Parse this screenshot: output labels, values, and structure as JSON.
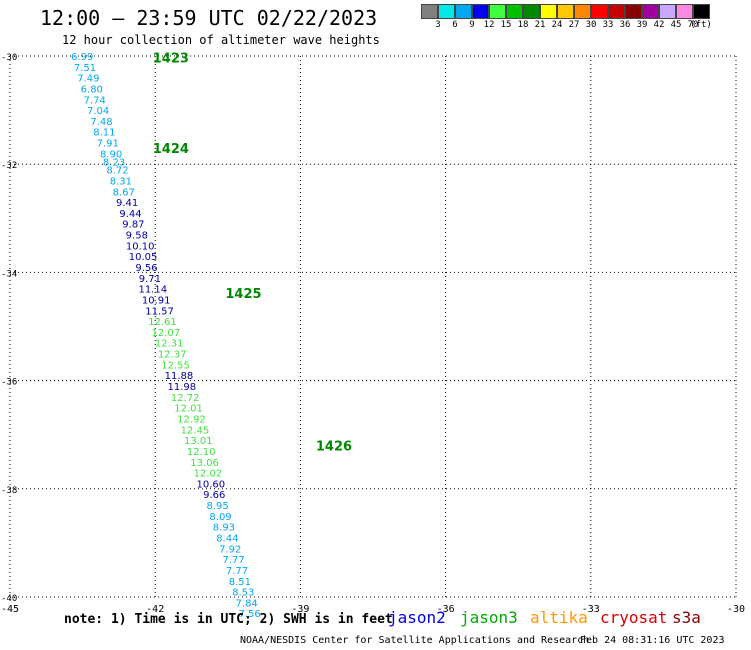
{
  "title": "12:00 – 23:59 UTC 02/22/2023",
  "subtitle": "12 hour collection of altimeter wave heights",
  "color_scale": {
    "labels": [
      "3",
      "6",
      "9",
      "12",
      "15",
      "18",
      "21",
      "24",
      "27",
      "30",
      "33",
      "36",
      "39",
      "42",
      "45",
      "70",
      "(ft)"
    ],
    "colors": [
      "#808080",
      "#00e8e8",
      "#00a8f0",
      "#0000f0",
      "#40ff40",
      "#00c000",
      "#008800",
      "#ffff00",
      "#ffc800",
      "#ff8800",
      "#ff0000",
      "#c80000",
      "#880000",
      "#a000a0",
      "#c8a8ff",
      "#ff88e0",
      "#000000"
    ]
  },
  "note": "note: 1) Time is in UTC; 2) SWH is in feet",
  "satellites": [
    {
      "name": "jason2",
      "color": "#0000f0"
    },
    {
      "name": "jason3",
      "color": "#00aa00"
    },
    {
      "name": "altika",
      "color": "#ff9900"
    },
    {
      "name": "cryosat",
      "color": "#dd0000"
    },
    {
      "name": "s3a",
      "color": "#880000"
    }
  ],
  "footer": "NOAA/NESDIS Center for Satellite Applications and Research",
  "timestamp": "Feb 24 08:31:16 UTC 2023",
  "chart_data": {
    "type": "scatter",
    "x_label_units": "longitude",
    "y_label_units": "latitude",
    "xlim": [
      -45,
      -30
    ],
    "ylim": [
      -40,
      -30
    ],
    "x_ticks": [
      "-45",
      "-42",
      "-39",
      "-36",
      "-33",
      "-30"
    ],
    "y_ticks": [
      "-30",
      "-32",
      "-34",
      "-36",
      "-38",
      "-40"
    ],
    "x_tick_values": [
      -45,
      -42,
      -39,
      -36,
      -33,
      -30
    ],
    "y_tick_values": [
      -30,
      -32,
      -34,
      -36,
      -38,
      -40
    ],
    "time_labels": [
      {
        "text": "1423",
        "lon": -42.05,
        "lat": -30.03
      },
      {
        "text": "1424",
        "lon": -42.05,
        "lat": -31.7
      },
      {
        "text": "1425",
        "lon": -40.55,
        "lat": -34.38
      },
      {
        "text": "1426",
        "lon": -38.68,
        "lat": -37.2
      }
    ],
    "points": [
      {
        "lon": -43.51,
        "lat": -30.0,
        "swh": "6.99",
        "color": "#00a8f0"
      },
      {
        "lon": -43.45,
        "lat": -30.2,
        "swh": "7.51",
        "color": "#00a8f0"
      },
      {
        "lon": -43.38,
        "lat": -30.4,
        "swh": "7.49",
        "color": "#00a8f0"
      },
      {
        "lon": -43.31,
        "lat": -30.6,
        "swh": "6.80",
        "color": "#00a8f0"
      },
      {
        "lon": -43.25,
        "lat": -30.8,
        "swh": "7.74",
        "color": "#00a8f0"
      },
      {
        "lon": -43.18,
        "lat": -31.0,
        "swh": "7.04",
        "color": "#00a8f0"
      },
      {
        "lon": -43.11,
        "lat": -31.2,
        "swh": "7.48",
        "color": "#00a8f0"
      },
      {
        "lon": -43.05,
        "lat": -31.4,
        "swh": "8.11",
        "color": "#00a8f0"
      },
      {
        "lon": -42.98,
        "lat": -31.6,
        "swh": "7.91",
        "color": "#00a8f0"
      },
      {
        "lon": -42.91,
        "lat": -31.8,
        "swh": "8.90",
        "color": "#00a8f0"
      },
      {
        "lon": -42.85,
        "lat": -31.95,
        "swh": "8.23",
        "color": "#00a8f0"
      },
      {
        "lon": -42.78,
        "lat": -32.1,
        "swh": "8.72",
        "color": "#00a8f0"
      },
      {
        "lon": -42.71,
        "lat": -32.3,
        "swh": "8.31",
        "color": "#00a8f0"
      },
      {
        "lon": -42.65,
        "lat": -32.5,
        "swh": "8.67",
        "color": "#00a8f0"
      },
      {
        "lon": -42.58,
        "lat": -32.7,
        "swh": "9.41",
        "color": "#0000a0"
      },
      {
        "lon": -42.51,
        "lat": -32.9,
        "swh": "9.44",
        "color": "#0000a0"
      },
      {
        "lon": -42.45,
        "lat": -33.1,
        "swh": "9.87",
        "color": "#0000a0"
      },
      {
        "lon": -42.38,
        "lat": -33.3,
        "swh": "9.58",
        "color": "#0000a0"
      },
      {
        "lon": -42.31,
        "lat": -33.5,
        "swh": "10.10",
        "color": "#0000a0"
      },
      {
        "lon": -42.25,
        "lat": -33.7,
        "swh": "10.05",
        "color": "#0000a0"
      },
      {
        "lon": -42.18,
        "lat": -33.9,
        "swh": "9.56",
        "color": "#0000a0"
      },
      {
        "lon": -42.11,
        "lat": -34.1,
        "swh": "9.71",
        "color": "#0000a0"
      },
      {
        "lon": -42.05,
        "lat": -34.3,
        "swh": "11.14",
        "color": "#0000a0"
      },
      {
        "lon": -41.98,
        "lat": -34.5,
        "swh": "10.91",
        "color": "#0000a0"
      },
      {
        "lon": -41.91,
        "lat": -34.7,
        "swh": "11.57",
        "color": "#0000a0"
      },
      {
        "lon": -41.85,
        "lat": -34.9,
        "swh": "12.61",
        "color": "#40e040"
      },
      {
        "lon": -41.78,
        "lat": -35.1,
        "swh": "12.07",
        "color": "#40e040"
      },
      {
        "lon": -41.71,
        "lat": -35.3,
        "swh": "12.31",
        "color": "#40e040"
      },
      {
        "lon": -41.65,
        "lat": -35.5,
        "swh": "12.37",
        "color": "#40e040"
      },
      {
        "lon": -41.58,
        "lat": -35.7,
        "swh": "12.55",
        "color": "#40e040"
      },
      {
        "lon": -41.51,
        "lat": -35.9,
        "swh": "11.88",
        "color": "#0000a0"
      },
      {
        "lon": -41.45,
        "lat": -36.1,
        "swh": "11.98",
        "color": "#0000a0"
      },
      {
        "lon": -41.38,
        "lat": -36.3,
        "swh": "12.72",
        "color": "#40e040"
      },
      {
        "lon": -41.31,
        "lat": -36.5,
        "swh": "12.01",
        "color": "#40e040"
      },
      {
        "lon": -41.25,
        "lat": -36.7,
        "swh": "12.92",
        "color": "#40e040"
      },
      {
        "lon": -41.18,
        "lat": -36.9,
        "swh": "12.45",
        "color": "#40e040"
      },
      {
        "lon": -41.11,
        "lat": -37.1,
        "swh": "13.01",
        "color": "#40e040"
      },
      {
        "lon": -41.05,
        "lat": -37.3,
        "swh": "12.10",
        "color": "#40e040"
      },
      {
        "lon": -40.98,
        "lat": -37.5,
        "swh": "13.06",
        "color": "#40e040"
      },
      {
        "lon": -40.91,
        "lat": -37.7,
        "swh": "12.02",
        "color": "#40e040"
      },
      {
        "lon": -40.85,
        "lat": -37.9,
        "swh": "10.60",
        "color": "#0000a0"
      },
      {
        "lon": -40.78,
        "lat": -38.1,
        "swh": "9.66",
        "color": "#0000a0"
      },
      {
        "lon": -40.71,
        "lat": -38.3,
        "swh": "8.95",
        "color": "#00a8f0"
      },
      {
        "lon": -40.65,
        "lat": -38.5,
        "swh": "8.09",
        "color": "#00a8f0"
      },
      {
        "lon": -40.58,
        "lat": -38.7,
        "swh": "8.93",
        "color": "#00a8f0"
      },
      {
        "lon": -40.51,
        "lat": -38.9,
        "swh": "8.44",
        "color": "#00a8f0"
      },
      {
        "lon": -40.45,
        "lat": -39.1,
        "swh": "7.92",
        "color": "#00a8f0"
      },
      {
        "lon": -40.38,
        "lat": -39.3,
        "swh": "7.77",
        "color": "#00a8f0"
      },
      {
        "lon": -40.31,
        "lat": -39.5,
        "swh": "7.77",
        "color": "#00a8f0"
      },
      {
        "lon": -40.25,
        "lat": -39.7,
        "swh": "8.51",
        "color": "#00a8f0"
      },
      {
        "lon": -40.18,
        "lat": -39.9,
        "swh": "8.53",
        "color": "#00a8f0"
      },
      {
        "lon": -40.11,
        "lat": -40.1,
        "swh": "7.84",
        "color": "#00a8f0"
      },
      {
        "lon": -40.05,
        "lat": -40.3,
        "swh": "7.56",
        "color": "#00a8f0"
      }
    ]
  }
}
